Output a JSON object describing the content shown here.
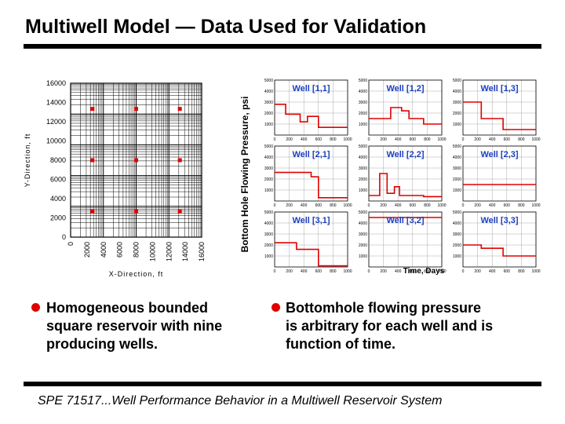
{
  "slide": {
    "title": "Multiwell Model — Data Used for Validation",
    "bullets": [
      {
        "lines": [
          "Homogeneous bounded",
          "square reservoir with nine",
          "producing wells."
        ]
      },
      {
        "lines": [
          "Bottomhole flowing pressure",
          "is arbitrary for each well and is",
          "function of time."
        ]
      }
    ],
    "footer": "SPE 71517...Well Performance Behavior in a Multiwell Reservoir System",
    "bullet_color": "#e00000"
  },
  "chart_data": [
    {
      "type": "scatter",
      "title": "",
      "xlabel": "X-Direction, ft",
      "ylabel": "Y-Direction, ft",
      "xlim": [
        0,
        16000
      ],
      "ylim": [
        0,
        16000
      ],
      "xticks": [
        0,
        2000,
        4000,
        6000,
        8000,
        10000,
        12000,
        14000,
        16000
      ],
      "yticks": [
        0,
        2000,
        4000,
        6000,
        8000,
        10000,
        12000,
        14000,
        16000
      ],
      "grid": true,
      "marker_color": "#e00000",
      "points": [
        {
          "x": 2667,
          "y": 13333
        },
        {
          "x": 8000,
          "y": 13333
        },
        {
          "x": 13333,
          "y": 13333
        },
        {
          "x": 2667,
          "y": 8000
        },
        {
          "x": 8000,
          "y": 8000
        },
        {
          "x": 13333,
          "y": 8000
        },
        {
          "x": 2667,
          "y": 2667
        },
        {
          "x": 8000,
          "y": 2667
        },
        {
          "x": 13333,
          "y": 2667
        }
      ]
    },
    {
      "type": "line",
      "ylabel": "Bottom Hole Flowing Pressure, psi",
      "xlabel": "Time, Days",
      "xlim": [
        0,
        1000
      ],
      "ylim": [
        0,
        5000
      ],
      "xticks": [
        0,
        200,
        400,
        600,
        800,
        1000
      ],
      "yticks": [
        1000,
        2000,
        3000,
        4000,
        5000
      ],
      "line_color": "#e00000",
      "label_color": "#1a3fbf",
      "wells": [
        {
          "name": "Well [1,1]",
          "t": [
            0,
            150,
            150,
            350,
            350,
            450,
            450,
            600,
            600,
            1000
          ],
          "p": [
            2800,
            2800,
            1900,
            1900,
            1200,
            1200,
            1700,
            1700,
            700,
            700
          ]
        },
        {
          "name": "Well [1,2]",
          "t": [
            0,
            300,
            300,
            450,
            450,
            550,
            550,
            750,
            750,
            1000
          ],
          "p": [
            1500,
            1500,
            2500,
            2500,
            2200,
            2200,
            1500,
            1500,
            1000,
            1000
          ]
        },
        {
          "name": "Well [1,3]",
          "t": [
            0,
            250,
            250,
            550,
            550,
            1000
          ],
          "p": [
            3000,
            3000,
            1500,
            1500,
            500,
            500
          ]
        },
        {
          "name": "Well [2,1]",
          "t": [
            0,
            500,
            500,
            600,
            600,
            1000
          ],
          "p": [
            2600,
            2600,
            2200,
            2200,
            300,
            300
          ]
        },
        {
          "name": "Well [2,2]",
          "t": [
            0,
            150,
            150,
            250,
            250,
            350,
            350,
            420,
            420,
            750,
            750,
            1000
          ],
          "p": [
            500,
            500,
            2500,
            2500,
            700,
            700,
            1300,
            1300,
            500,
            500,
            400,
            400
          ]
        },
        {
          "name": "Well [2,3]",
          "t": [
            0,
            1000
          ],
          "p": [
            1500,
            1500
          ]
        },
        {
          "name": "Well [3,1]",
          "t": [
            0,
            300,
            300,
            600,
            600,
            1000
          ],
          "p": [
            2200,
            2200,
            1600,
            1600,
            100,
            100
          ]
        },
        {
          "name": "Well [3,2]",
          "t": [
            0,
            1000
          ],
          "p": [
            4500,
            4500
          ]
        },
        {
          "name": "Well [3,3]",
          "t": [
            0,
            250,
            250,
            550,
            550,
            1000
          ],
          "p": [
            2000,
            2000,
            1700,
            1700,
            1000,
            1000
          ]
        }
      ]
    }
  ]
}
